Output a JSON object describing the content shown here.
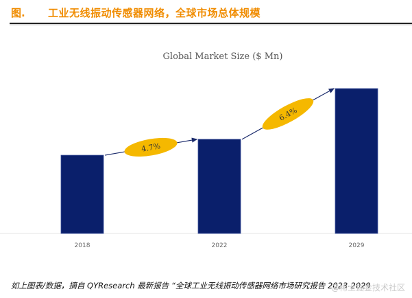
{
  "header": {
    "figure_label": "图.",
    "title": "工业无线振动传感器网络，全球市场总体规模"
  },
  "chart_data": {
    "type": "bar",
    "title": "Global Market Size ($ Mn)",
    "xlabel": "",
    "ylabel": "",
    "categories": [
      "2018",
      "2022",
      "2029"
    ],
    "values": [
      54,
      65,
      100
    ],
    "value_note": "relative bar heights (no numeric values labeled); 2029 normalized to 100",
    "ylim": [
      0,
      100
    ],
    "grid": false,
    "bar_color": "#0a1f6b",
    "annotations": [
      {
        "from": "2018",
        "to": "2022",
        "label": "4.7%",
        "meaning": "CAGR"
      },
      {
        "from": "2022",
        "to": "2029",
        "label": "6.4%",
        "meaning": "CAGR"
      }
    ],
    "annotation_color": "#f5b800"
  },
  "caption": "如上图表/数据，摘自 QYResearch 最新报告 “全球工业无线振动传感器网络市场研究报告 2023-2029",
  "watermark": "@稀土掘金技术社区"
}
